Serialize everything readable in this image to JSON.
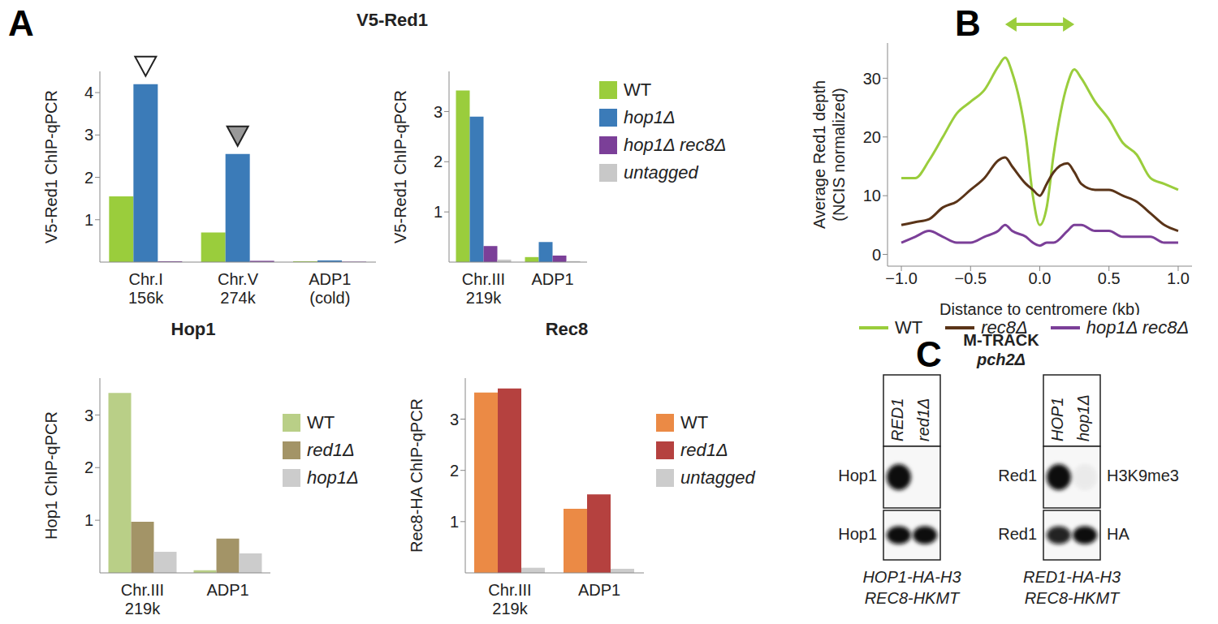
{
  "panel_labels": [
    "A",
    "B",
    "C"
  ],
  "chart_data": [
    {
      "type": "bar",
      "title": "V5-Red1",
      "y_label": "V5-Red1 ChIP-qPCR",
      "categories": [
        "Chr.I 156k",
        "Chr.V 274k",
        "ADP1 (cold)"
      ],
      "series": [
        {
          "name": "WT",
          "color": "#9acd3c",
          "values": [
            1.55,
            0.7,
            0.02
          ]
        },
        {
          "name": "hop1Δ",
          "color": "#3b7bb8",
          "values": [
            4.2,
            2.55,
            0.04
          ]
        },
        {
          "name": "hop1Δ rec8Δ",
          "color": "#7b3f98",
          "values": [
            0.02,
            0.03,
            0.01
          ]
        }
      ],
      "ylim": [
        0,
        4.5
      ],
      "yticks": [
        1,
        2,
        3,
        4
      ]
    },
    {
      "type": "bar",
      "y_label": "V5-Red1 ChIP-qPCR",
      "categories": [
        "Chr.III 219k",
        "ADP1"
      ],
      "series": [
        {
          "name": "WT",
          "color": "#9acd3c",
          "values": [
            3.42,
            0.1
          ]
        },
        {
          "name": "hop1Δ",
          "color": "#3b7bb8",
          "values": [
            2.9,
            0.4
          ]
        },
        {
          "name": "hop1Δ rec8Δ",
          "color": "#7b3f98",
          "values": [
            0.32,
            0.13
          ]
        },
        {
          "name": "untagged",
          "color": "#c8c8c8",
          "values": [
            0.05,
            0.02
          ]
        }
      ],
      "ylim": [
        0,
        3.8
      ],
      "yticks": [
        1,
        2,
        3
      ],
      "legend": "right"
    },
    {
      "type": "bar",
      "title": "Hop1",
      "y_label": "Hop1 ChIP-qPCR",
      "categories": [
        "Chr.III 219k",
        "ADP1"
      ],
      "series": [
        {
          "name": "WT",
          "color": "#b9cf87",
          "values": [
            3.42,
            0.05
          ]
        },
        {
          "name": "red1Δ",
          "color": "#a39467",
          "values": [
            0.97,
            0.65
          ]
        },
        {
          "name": "hop1Δ",
          "color": "#cccccc",
          "values": [
            0.4,
            0.37
          ]
        }
      ],
      "ylim": [
        0,
        3.7
      ],
      "yticks": [
        1,
        2,
        3
      ],
      "legend": "right"
    },
    {
      "type": "bar",
      "title": "Rec8",
      "y_label": "Rec8-HA ChIP-qPCR",
      "categories": [
        "Chr.III 219k",
        "ADP1"
      ],
      "series": [
        {
          "name": "WT",
          "color": "#eb8a45",
          "values": [
            3.52,
            1.25
          ]
        },
        {
          "name": "red1Δ",
          "color": "#b5413f",
          "values": [
            3.6,
            1.53
          ]
        },
        {
          "name": "untagged",
          "color": "#cccccc",
          "values": [
            0.1,
            0.08
          ]
        }
      ],
      "ylim": [
        0,
        3.8
      ],
      "yticks": [
        1,
        2,
        3
      ],
      "legend": "right"
    },
    {
      "type": "line",
      "x_label": "Distance to centromere (kb)",
      "y_label": "Average Red1 depth (NCIS normalized)",
      "x": [
        -1,
        -0.9,
        -0.8,
        -0.7,
        -0.6,
        -0.5,
        -0.4,
        -0.3,
        -0.25,
        -0.2,
        -0.1,
        -0.05,
        0,
        0.05,
        0.1,
        0.2,
        0.25,
        0.3,
        0.4,
        0.5,
        0.6,
        0.7,
        0.8,
        0.9,
        1
      ],
      "series": [
        {
          "name": "WT",
          "color": "#9acd3c",
          "values": [
            13,
            13,
            16,
            20,
            24,
            26,
            28,
            32,
            33.5,
            31,
            20,
            10,
            5,
            8,
            17,
            29,
            31.5,
            30,
            26,
            23,
            19,
            17,
            13,
            12,
            11
          ]
        },
        {
          "name": "rec8Δ",
          "color": "#5a3418",
          "values": [
            5,
            5.5,
            6,
            8,
            9,
            11,
            13,
            16,
            16.5,
            15,
            12,
            11,
            10,
            12,
            14,
            15.5,
            14,
            12,
            11,
            11,
            10,
            9,
            7,
            5,
            4
          ]
        },
        {
          "name": "hop1Δ rec8Δ",
          "color": "#7b3f98",
          "values": [
            2,
            3,
            4,
            3,
            2,
            2,
            3,
            4,
            5,
            4,
            3,
            2,
            1.5,
            2,
            2,
            4,
            5,
            5,
            4,
            4,
            3,
            3,
            3,
            2,
            2
          ]
        }
      ],
      "xlim": [
        -1.1,
        1.1
      ],
      "xticks": [
        {
          "value": -1,
          "label": "−1.0"
        },
        {
          "value": -0.5,
          "label": "−0.5"
        },
        {
          "value": 0,
          "label": "0.0"
        },
        {
          "value": 0.5,
          "label": "0.5"
        },
        {
          "value": 1,
          "label": "1.0"
        }
      ],
      "ylim": [
        -2,
        36
      ],
      "yticks": [
        0,
        10,
        20,
        30
      ],
      "legend": "bottom"
    }
  ],
  "blot": {
    "title": "M-TRACK",
    "subtitle": "pch2Δ",
    "panels": [
      {
        "lanes": [
          "RED1",
          "red1Δ"
        ],
        "rows": [
          {
            "label": "Hop1",
            "intensity": [
              1,
              0
            ]
          },
          {
            "label": "Hop1",
            "intensity": [
              1,
              1
            ]
          }
        ],
        "captions": [
          "HOP1-HA-H3",
          "REC8-HKMT"
        ]
      },
      {
        "lanes": [
          "HOP1",
          "hop1Δ"
        ],
        "rows": [
          {
            "label": "Red1",
            "right_label": "H3K9me3",
            "intensity": [
              1,
              0.05
            ]
          },
          {
            "label": "Red1",
            "right_label": "HA",
            "intensity": [
              0.9,
              1
            ]
          }
        ],
        "captions": [
          "RED1-HA-H3",
          "REC8-HKMT"
        ]
      }
    ]
  }
}
